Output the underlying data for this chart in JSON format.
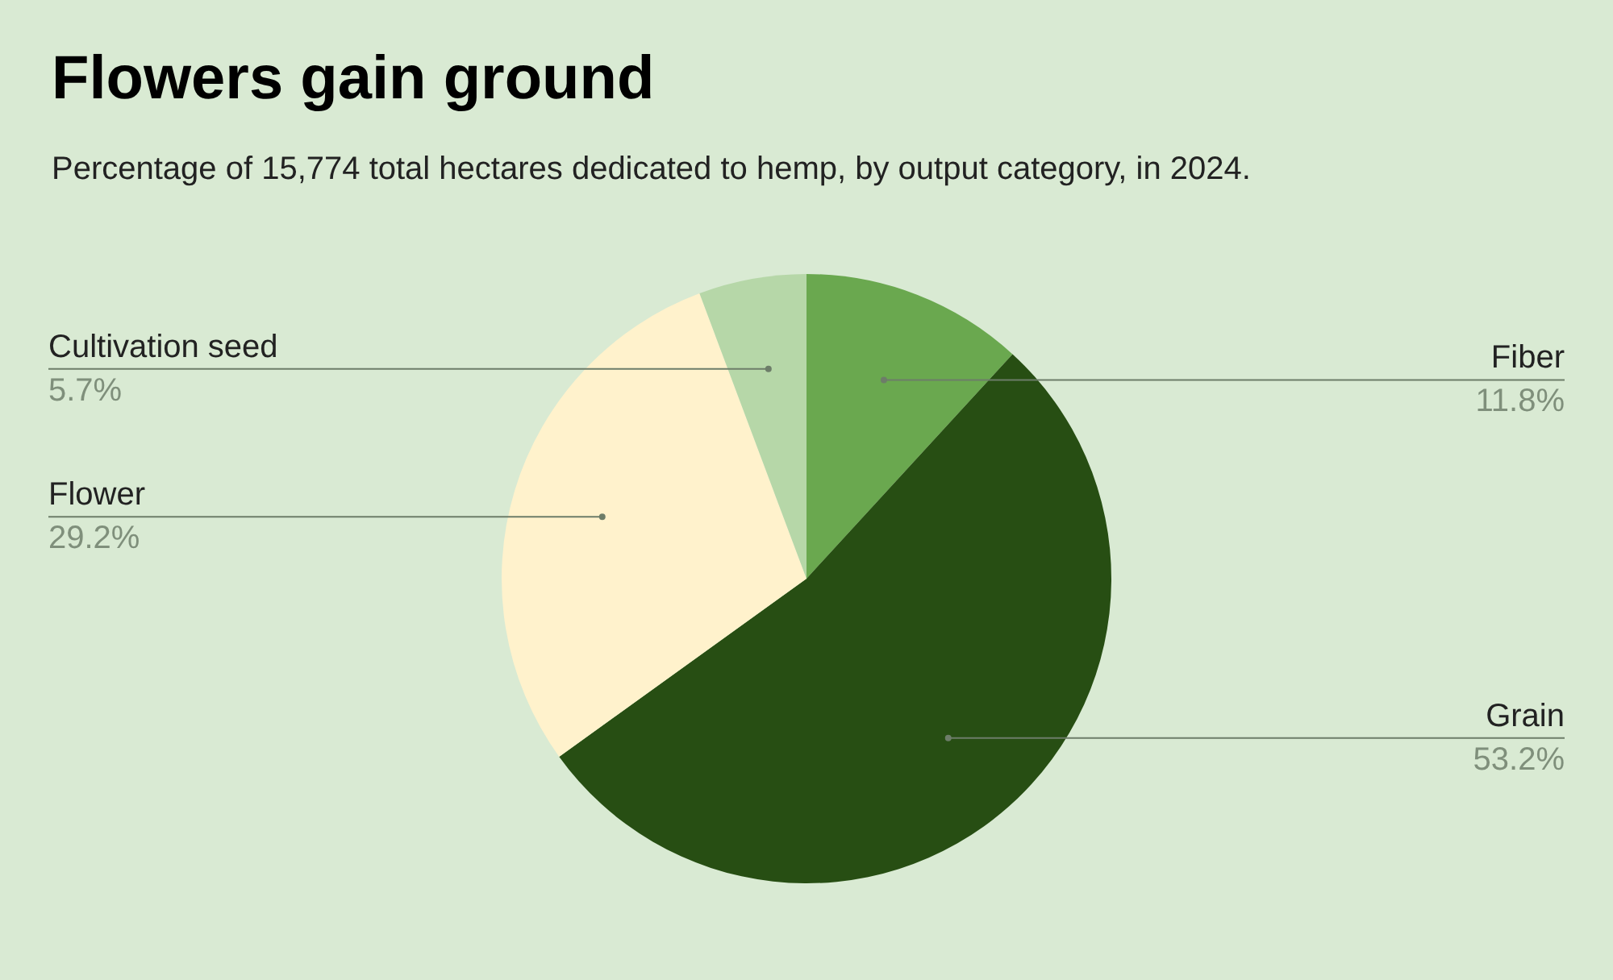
{
  "chart_data": {
    "type": "pie",
    "title": "Flowers gain ground",
    "subtitle": "Percentage of 15,774 total hectares dedicated to hemp, by output category, in 2024.",
    "categories": [
      "Fiber",
      "Grain",
      "Flower",
      "Cultivation seed"
    ],
    "values": [
      11.8,
      53.2,
      29.2,
      5.7
    ],
    "value_labels": [
      "11.8%",
      "53.2%",
      "29.2%",
      "5.7%"
    ],
    "colors": [
      "#6aa84f",
      "#274e13",
      "#fff2cc",
      "#b6d7a8"
    ],
    "legend": false
  }
}
